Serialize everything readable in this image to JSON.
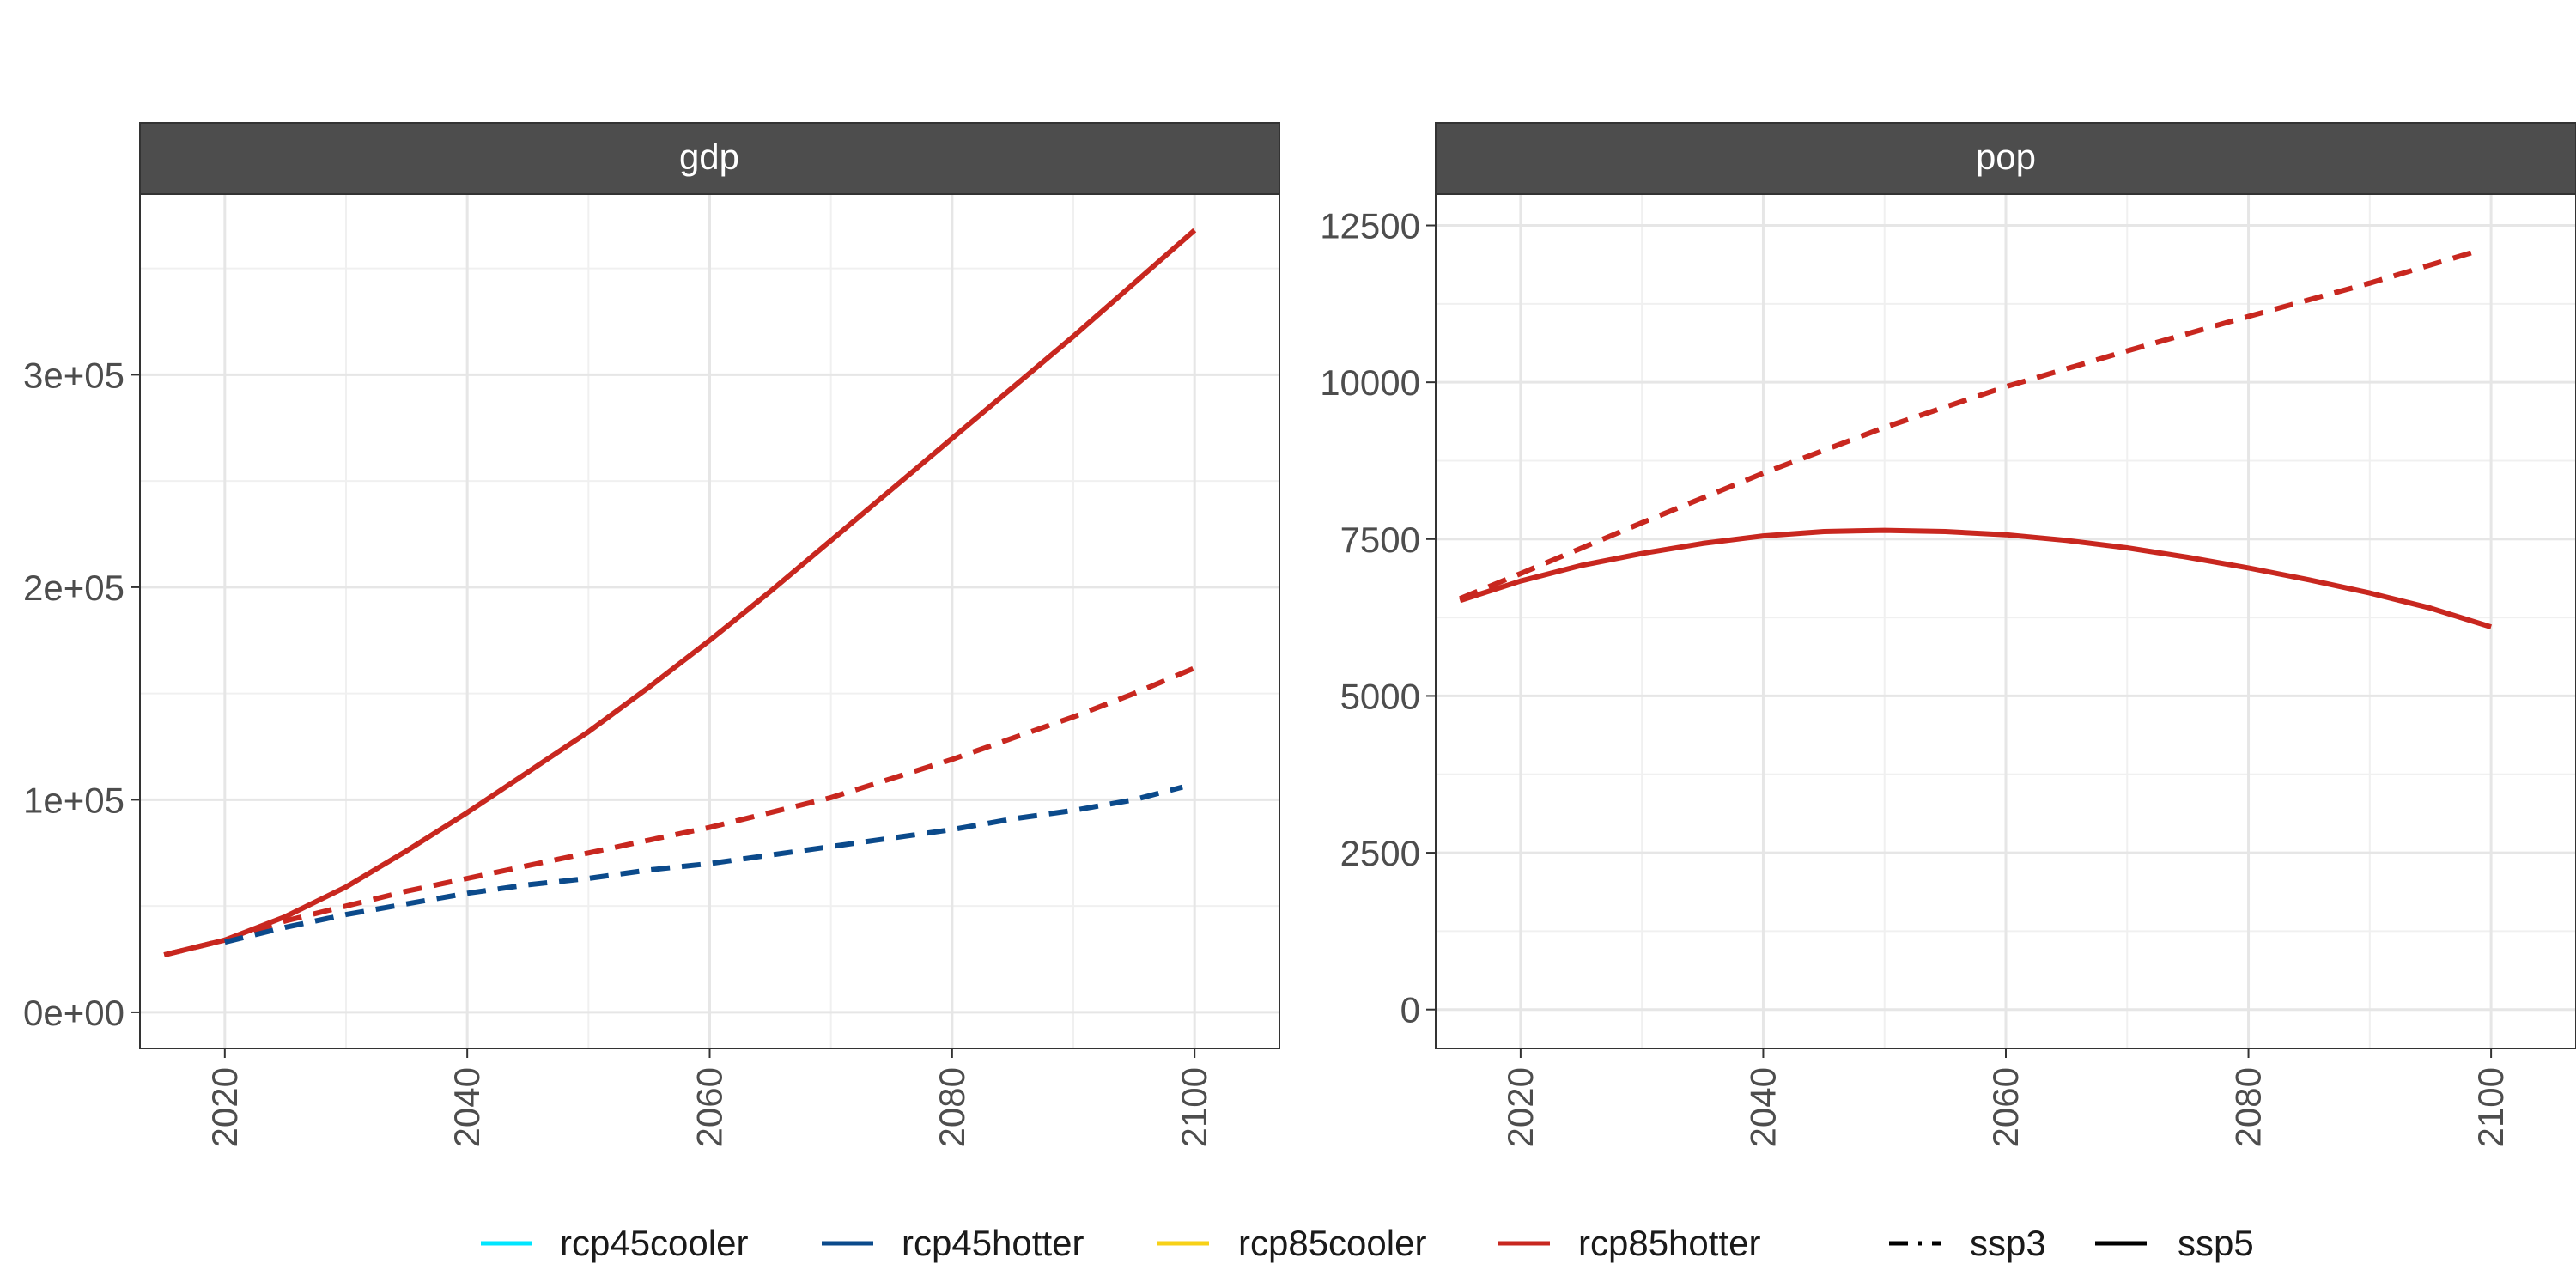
{
  "chart_data": {
    "type": "line",
    "x_ticks": [
      2020,
      2040,
      2060,
      2080,
      2100
    ],
    "xlim": [
      2013,
      2107
    ],
    "grid": true,
    "legend_position": "bottom",
    "colors": {
      "rcp45cooler": "#00e5ff",
      "rcp45hotter": "#0b4a8b",
      "rcp85cooler": "#f7d117",
      "rcp85hotter": "#c8271f"
    },
    "color_legend": [
      {
        "name": "rcp45cooler",
        "color": "#00e5ff"
      },
      {
        "name": "rcp45hotter",
        "color": "#0b4a8b"
      },
      {
        "name": "rcp85cooler",
        "color": "#f7d117"
      },
      {
        "name": "rcp85hotter",
        "color": "#c8271f"
      }
    ],
    "linetype_legend": [
      {
        "name": "ssp3",
        "dash": "dashed"
      },
      {
        "name": "ssp5",
        "dash": "solid"
      }
    ],
    "panels": [
      {
        "strip": "gdp",
        "ylim": [
          -17000,
          385000
        ],
        "y_ticks": [
          0,
          100000,
          200000,
          300000
        ],
        "y_tick_labels": [
          "0e+00",
          "1e+05",
          "2e+05",
          "3e+05"
        ],
        "series": [
          {
            "scenario": "rcp85hotter",
            "ssp": "ssp5",
            "x": [
              2015,
              2020,
              2025,
              2030,
              2035,
              2040,
              2045,
              2050,
              2055,
              2060,
              2065,
              2070,
              2075,
              2080,
              2085,
              2090,
              2095,
              2100
            ],
            "y": [
              27000,
              34000,
              45000,
              59000,
              76000,
              94000,
              113000,
              132000,
              153000,
              175000,
              198000,
              222000,
              246000,
              270000,
              294000,
              318000,
              343000,
              368000
            ]
          },
          {
            "scenario": "rcp85hotter",
            "ssp": "ssp3",
            "x": [
              2015,
              2020,
              2025,
              2030,
              2035,
              2040,
              2045,
              2050,
              2055,
              2060,
              2065,
              2070,
              2075,
              2080,
              2085,
              2090,
              2095,
              2100
            ],
            "y": [
              27000,
              34000,
              43000,
              50000,
              57000,
              63000,
              69000,
              75000,
              81000,
              87000,
              94000,
              101000,
              110000,
              119000,
              129000,
              139000,
              150000,
              162000
            ]
          },
          {
            "scenario": "rcp45hotter",
            "ssp": "ssp3",
            "x": [
              2020,
              2025,
              2030,
              2035,
              2040,
              2045,
              2050,
              2055,
              2060,
              2065,
              2070,
              2075,
              2080,
              2085,
              2090,
              2095,
              2099
            ],
            "y": [
              33000,
              40000,
              46000,
              51000,
              56000,
              60000,
              63000,
              67000,
              70000,
              74000,
              78000,
              82000,
              86000,
              91000,
              95000,
              100000,
              106000
            ]
          }
        ]
      },
      {
        "strip": "pop",
        "ylim": [
          -620,
          13000
        ],
        "y_ticks": [
          0,
          2500,
          5000,
          7500,
          10000,
          12500
        ],
        "y_tick_labels": [
          "0",
          "2500",
          "5000",
          "7500",
          "10000",
          "12500"
        ],
        "series": [
          {
            "scenario": "rcp85hotter",
            "ssp": "ssp3",
            "x": [
              2015,
              2020,
              2030,
              2040,
              2050,
              2060,
              2070,
              2080,
              2090,
              2099
            ],
            "y": [
              6550,
              6950,
              7760,
              8550,
              9280,
              9930,
              10500,
              11050,
              11580,
              12100
            ]
          },
          {
            "scenario": "rcp85hotter",
            "ssp": "ssp5",
            "x": [
              2015,
              2020,
              2025,
              2030,
              2035,
              2040,
              2045,
              2050,
              2055,
              2060,
              2065,
              2070,
              2075,
              2080,
              2085,
              2090,
              2095,
              2100
            ],
            "y": [
              6520,
              6830,
              7080,
              7270,
              7430,
              7550,
              7620,
              7640,
              7620,
              7570,
              7480,
              7360,
              7210,
              7040,
              6850,
              6640,
              6400,
              6100
            ]
          }
        ]
      }
    ]
  }
}
